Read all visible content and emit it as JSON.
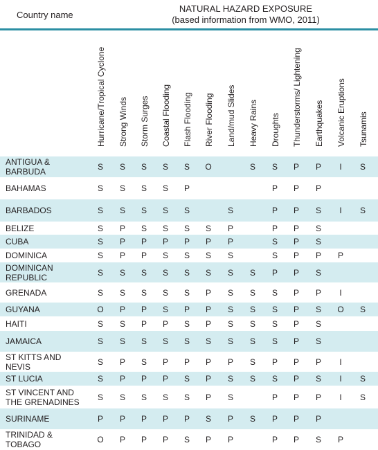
{
  "header": {
    "country_label": "Country name",
    "title_line1": "NATURAL HAZARD EXPOSURE",
    "title_line2": "(based information from WMO, 2011)"
  },
  "hazards": [
    "Hurricane/Tropical Cyclone",
    "Strong Winds",
    "Storm Surges",
    "Coastal Flooding",
    "Flash Flooding",
    "River Flooding",
    "Land/mud Slides",
    "Heavy Rains",
    "Droughts",
    "Thunderstorms/ Lightening",
    "Earthquakes",
    "Volcanic Eruptions",
    "Tsunamis"
  ],
  "rows": [
    {
      "country": "ANTIGUA &\nBARBUDA",
      "values": [
        "S",
        "S",
        "S",
        "S",
        "S",
        "O",
        "",
        "S",
        "S",
        "P",
        "P",
        "I",
        "S"
      ]
    },
    {
      "country": "BAHAMAS",
      "values": [
        "S",
        "S",
        "S",
        "S",
        "P",
        "",
        "",
        "",
        "P",
        "P",
        "P",
        "",
        ""
      ]
    },
    {
      "country": "BARBADOS",
      "values": [
        "S",
        "S",
        "S",
        "S",
        "S",
        "",
        "S",
        "",
        "P",
        "P",
        "S",
        "I",
        "S"
      ]
    },
    {
      "country": "BELIZE",
      "values": [
        "S",
        "P",
        "S",
        "S",
        "S",
        "S",
        "P",
        "",
        "P",
        "P",
        "S",
        "",
        ""
      ]
    },
    {
      "country": "CUBA",
      "values": [
        "S",
        "P",
        "P",
        "P",
        "P",
        "P",
        "P",
        "",
        "S",
        "P",
        "S",
        "",
        ""
      ]
    },
    {
      "country": "DOMINICA",
      "values": [
        "S",
        "P",
        "P",
        "S",
        "S",
        "S",
        "S",
        "",
        "S",
        "P",
        "P",
        "P",
        ""
      ]
    },
    {
      "country": "DOMINICAN\nREPUBLIC",
      "values": [
        "S",
        "S",
        "S",
        "S",
        "S",
        "S",
        "S",
        "S",
        "P",
        "P",
        "S",
        "",
        ""
      ]
    },
    {
      "country": "GRENADA",
      "values": [
        "S",
        "S",
        "S",
        "S",
        "S",
        "P",
        "S",
        "S",
        "S",
        "P",
        "P",
        "I",
        ""
      ]
    },
    {
      "country": "GUYANA",
      "values": [
        "O",
        "P",
        "P",
        "S",
        "P",
        "P",
        "S",
        "S",
        "S",
        "P",
        "S",
        "O",
        "S"
      ]
    },
    {
      "country": "HAITI",
      "values": [
        "S",
        "S",
        "P",
        "P",
        "S",
        "P",
        "S",
        "S",
        "S",
        "P",
        "S",
        "",
        ""
      ]
    },
    {
      "country": "JAMAICA",
      "values": [
        "S",
        "S",
        "S",
        "S",
        "S",
        "S",
        "S",
        "S",
        "S",
        "P",
        "S",
        "",
        ""
      ]
    },
    {
      "country": "ST KITTS AND\nNEVIS",
      "values": [
        "S",
        "P",
        "S",
        "P",
        "P",
        "P",
        "P",
        "S",
        "P",
        "P",
        "P",
        "I",
        ""
      ]
    },
    {
      "country": "ST LUCIA",
      "values": [
        "S",
        "P",
        "P",
        "P",
        "S",
        "P",
        "S",
        "S",
        "S",
        "P",
        "S",
        "I",
        "S"
      ]
    },
    {
      "country": " ST VINCENT AND\nTHE GRENADINES",
      "values": [
        "S",
        "S",
        "S",
        "S",
        "S",
        "P",
        "S",
        "",
        "P",
        "P",
        "P",
        "I",
        "S"
      ]
    },
    {
      "country": "SURINAME",
      "values": [
        "P",
        "P",
        "P",
        "P",
        "P",
        "S",
        "P",
        "S",
        "P",
        "P",
        "P",
        "",
        ""
      ]
    },
    {
      "country": "TRINIDAD &\nTOBAGO",
      "values": [
        "O",
        "P",
        "P",
        "P",
        "S",
        "P",
        "P",
        "",
        "P",
        "P",
        "S",
        "P",
        ""
      ]
    }
  ],
  "colors": {
    "header_rule": "#2b8fa3",
    "row_shade": "#d4ecf0",
    "text": "#231f20"
  }
}
